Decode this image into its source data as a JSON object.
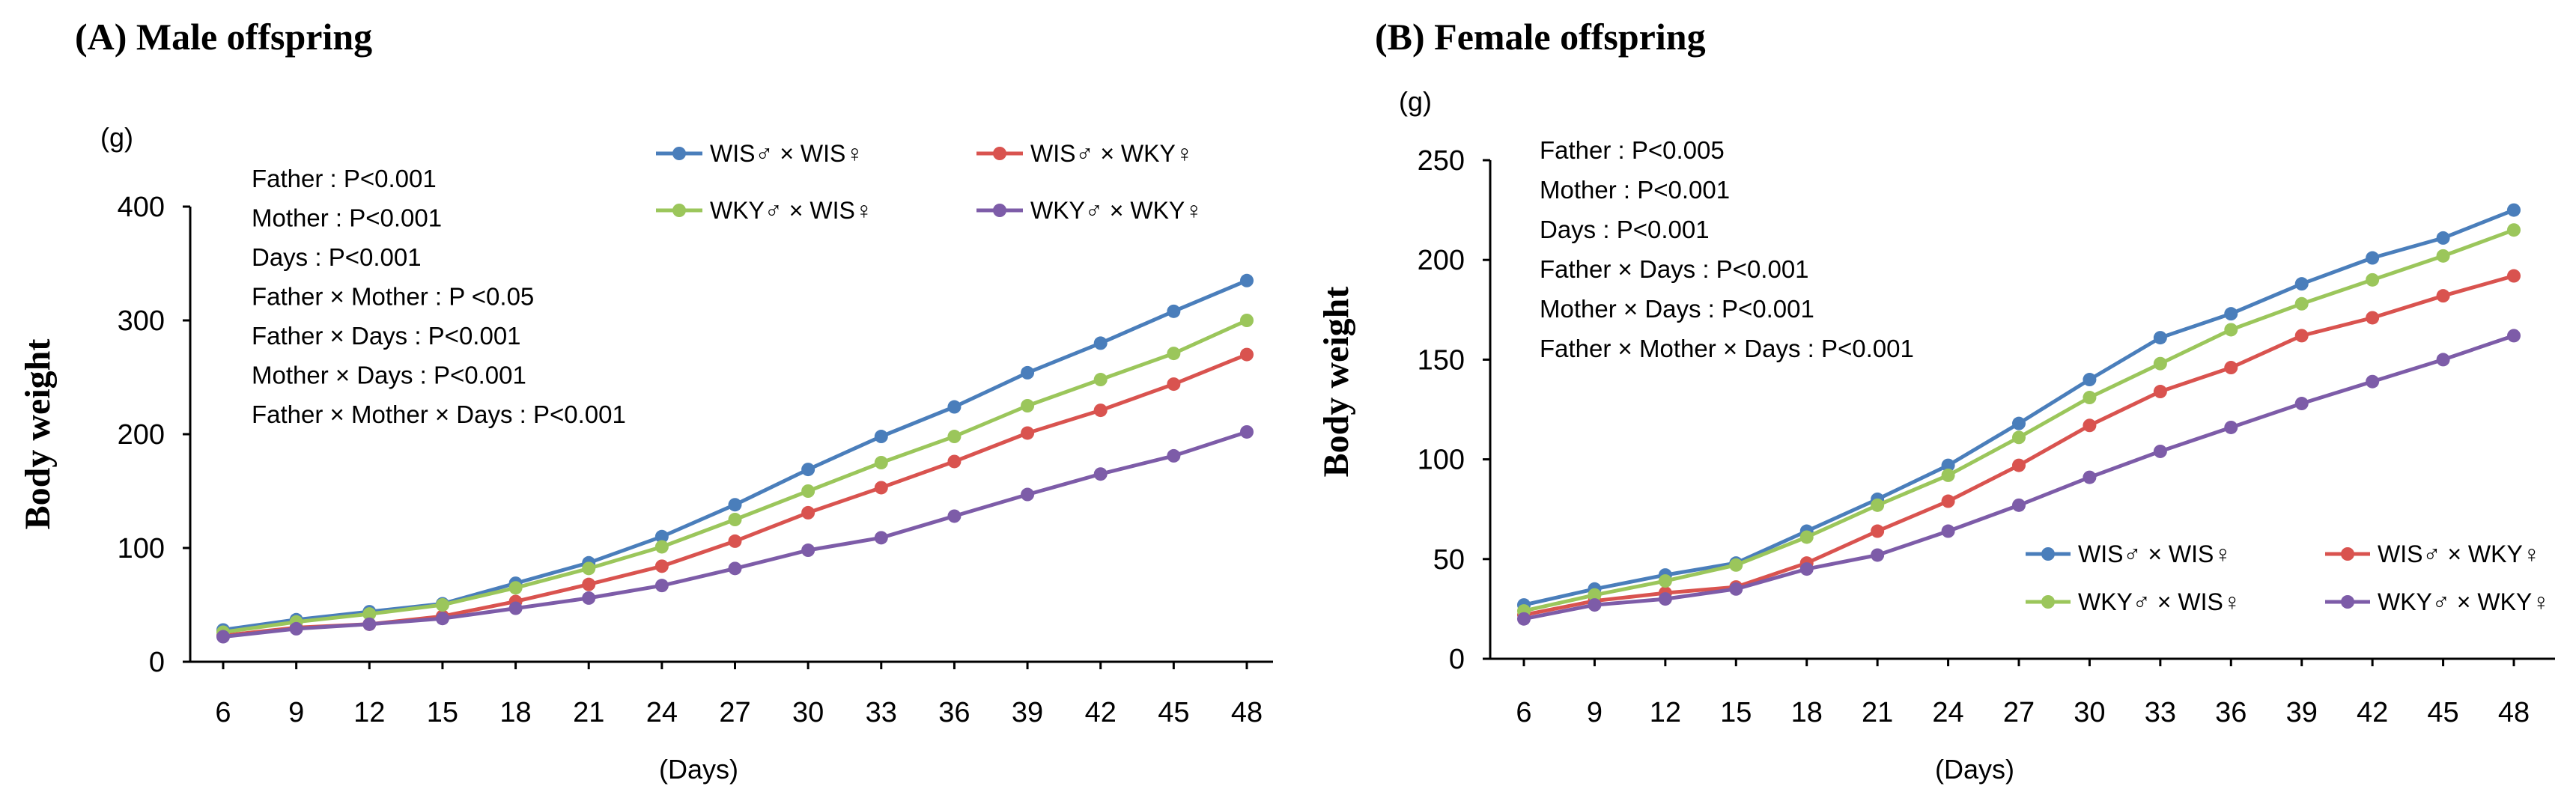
{
  "chart_data": [
    {
      "type": "line",
      "title": "(A) Male offspring",
      "ylabel": "Body weight",
      "yunit": "(g)",
      "xlabel": "(Days)",
      "ylim": [
        0,
        400
      ],
      "yticks": [
        0,
        100,
        200,
        300,
        400
      ],
      "x": [
        6,
        9,
        12,
        15,
        18,
        21,
        24,
        27,
        30,
        33,
        36,
        39,
        42,
        45,
        48
      ],
      "stats": [
        "Father : P<0.001",
        "Mother : P<0.001",
        "Days : P<0.001",
        "Father × Mother : P <0.05",
        "Father × Days : P<0.001",
        "Mother × Days : P<0.001",
        "Father × Mother × Days : P<0.001"
      ],
      "legend_position": "top-right",
      "series": [
        {
          "name": "WIS♂ × WIS♀",
          "color": "#4a7ebb",
          "values": [
            28,
            37,
            44,
            51,
            69,
            87,
            110,
            138,
            169,
            198,
            224,
            254,
            280,
            308,
            335
          ]
        },
        {
          "name": "WIS♂ × WKY♀",
          "color": "#d9534f",
          "values": [
            23,
            30,
            33,
            40,
            53,
            68,
            84,
            106,
            131,
            153,
            176,
            201,
            221,
            244,
            270
          ]
        },
        {
          "name": "WKY♂ × WIS♀",
          "color": "#9bc65b",
          "values": [
            26,
            35,
            42,
            50,
            65,
            82,
            101,
            125,
            150,
            175,
            198,
            225,
            248,
            271,
            300
          ]
        },
        {
          "name": "WKY♂ × WKY♀",
          "color": "#7d5ca8",
          "values": [
            22,
            29,
            33,
            38,
            47,
            56,
            67,
            82,
            98,
            109,
            128,
            147,
            165,
            181,
            202
          ]
        }
      ]
    },
    {
      "type": "line",
      "title": "(B) Female offspring",
      "ylabel": "Body weight",
      "yunit": "(g)",
      "xlabel": "(Days)",
      "ylim": [
        0,
        250
      ],
      "yticks": [
        0,
        50,
        100,
        150,
        200,
        250
      ],
      "x": [
        6,
        9,
        12,
        15,
        18,
        21,
        24,
        27,
        30,
        33,
        36,
        39,
        42,
        45,
        48
      ],
      "stats": [
        "Father : P<0.005",
        "Mother : P<0.001",
        "Days : P<0.001",
        "Father × Days : P<0.001",
        "Mother × Days : P<0.001",
        "Father × Mother × Days : P<0.001"
      ],
      "legend_position": "bottom-right",
      "series": [
        {
          "name": "WIS♂ × WIS♀",
          "color": "#4a7ebb",
          "values": [
            27,
            35,
            42,
            48,
            64,
            80,
            97,
            118,
            140,
            161,
            173,
            188,
            201,
            211,
            225
          ]
        },
        {
          "name": "WIS♂ × WKY♀",
          "color": "#d9534f",
          "values": [
            22,
            29,
            33,
            36,
            48,
            64,
            79,
            97,
            117,
            134,
            146,
            162,
            171,
            182,
            192
          ]
        },
        {
          "name": "WKY♂ × WIS♀",
          "color": "#9bc65b",
          "values": [
            24,
            32,
            39,
            47,
            61,
            77,
            92,
            111,
            131,
            148,
            165,
            178,
            190,
            202,
            215
          ]
        },
        {
          "name": "WKY♂ × WKY♀",
          "color": "#7d5ca8",
          "values": [
            20,
            27,
            30,
            35,
            45,
            52,
            64,
            77,
            91,
            104,
            116,
            128,
            139,
            150,
            162
          ]
        }
      ]
    }
  ]
}
